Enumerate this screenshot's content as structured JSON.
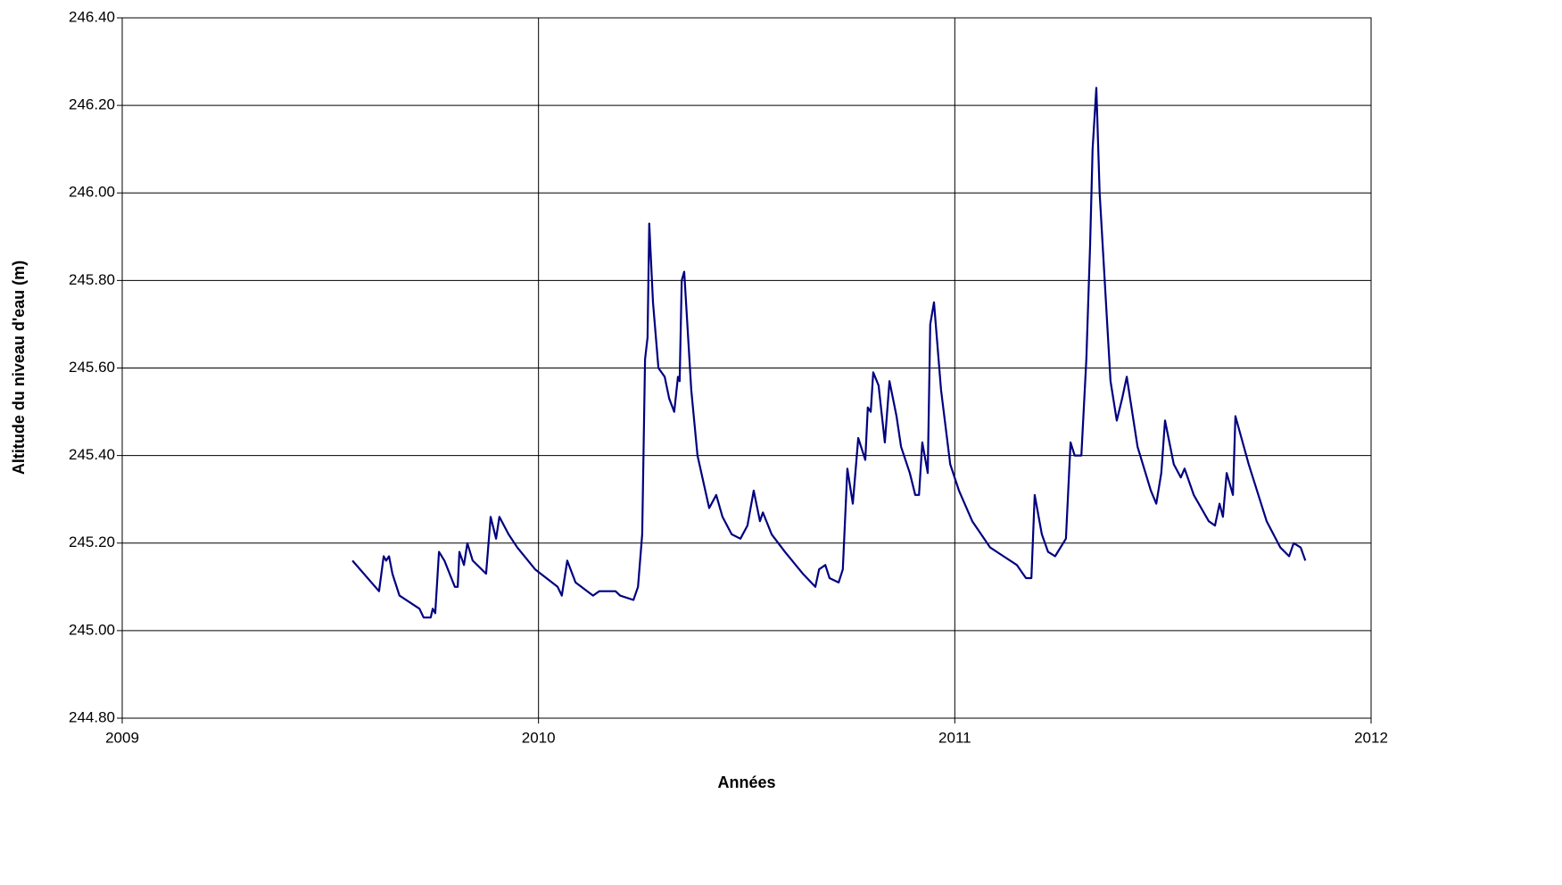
{
  "chart_data": {
    "type": "line",
    "x_label": "Années",
    "y_label": "Altitude du niveau d'eau (m)",
    "x": [
      2009.553,
      2009.617,
      2009.628,
      2009.634,
      2009.641,
      2009.649,
      2009.666,
      2009.714,
      2009.724,
      2009.741,
      2009.746,
      2009.752,
      2009.761,
      2009.774,
      2009.799,
      2009.806,
      2009.81,
      2009.821,
      2009.829,
      2009.842,
      2009.874,
      2009.885,
      2009.898,
      2009.906,
      2009.928,
      2009.949,
      2009.992,
      2010.046,
      2010.056,
      2010.069,
      2010.089,
      2010.131,
      2010.146,
      2010.185,
      2010.196,
      2010.228,
      2010.239,
      2010.249,
      2010.256,
      2010.262,
      2010.266,
      2010.275,
      2010.288,
      2010.303,
      2010.314,
      2010.326,
      2010.335,
      2010.339,
      2010.344,
      2010.35,
      2010.367,
      2010.382,
      2010.41,
      2010.427,
      2010.442,
      2010.464,
      2010.485,
      2010.502,
      2010.517,
      2010.532,
      2010.539,
      2010.56,
      2010.592,
      2010.635,
      2010.665,
      2010.674,
      2010.689,
      2010.699,
      2010.721,
      2010.731,
      2010.742,
      2010.755,
      2010.768,
      2010.785,
      2010.791,
      2010.798,
      2010.804,
      2010.817,
      2010.832,
      2010.843,
      2010.86,
      2010.871,
      2010.892,
      2010.905,
      2010.914,
      2010.922,
      2010.935,
      2010.941,
      2010.95,
      2010.967,
      2010.989,
      2011.01,
      2011.042,
      2011.085,
      2011.117,
      2011.149,
      2011.171,
      2011.184,
      2011.192,
      2011.209,
      2011.224,
      2011.241,
      2011.267,
      2011.278,
      2011.288,
      2011.304,
      2011.316,
      2011.325,
      2011.331,
      2011.34,
      2011.348,
      2011.374,
      2011.389,
      2011.402,
      2011.413,
      2011.439,
      2011.471,
      2011.484,
      2011.496,
      2011.505,
      2011.526,
      2011.543,
      2011.552,
      2011.574,
      2011.61,
      2011.625,
      2011.636,
      2011.644,
      2011.653,
      2011.668,
      2011.674,
      2011.706,
      2011.749,
      2011.782,
      2011.803,
      2011.814,
      2011.831,
      2011.842
    ],
    "series": [
      {
        "color": "#000080",
        "values": [
          245.16,
          245.09,
          245.17,
          245.16,
          245.17,
          245.13,
          245.08,
          245.05,
          245.03,
          245.03,
          245.05,
          245.04,
          245.18,
          245.16,
          245.1,
          245.1,
          245.18,
          245.15,
          245.2,
          245.16,
          245.13,
          245.26,
          245.21,
          245.26,
          245.22,
          245.19,
          245.14,
          245.1,
          245.08,
          245.16,
          245.11,
          245.08,
          245.09,
          245.09,
          245.08,
          245.07,
          245.1,
          245.22,
          245.62,
          245.67,
          245.93,
          245.75,
          245.6,
          245.58,
          245.53,
          245.5,
          245.58,
          245.57,
          245.8,
          245.82,
          245.55,
          245.4,
          245.28,
          245.31,
          245.26,
          245.22,
          245.21,
          245.24,
          245.32,
          245.25,
          245.27,
          245.22,
          245.18,
          245.13,
          245.1,
          245.14,
          245.15,
          245.12,
          245.11,
          245.14,
          245.37,
          245.29,
          245.44,
          245.39,
          245.51,
          245.5,
          245.59,
          245.56,
          245.43,
          245.57,
          245.49,
          245.42,
          245.36,
          245.31,
          245.31,
          245.43,
          245.36,
          245.7,
          245.75,
          245.55,
          245.38,
          245.32,
          245.25,
          245.19,
          245.17,
          245.15,
          245.12,
          245.12,
          245.31,
          245.22,
          245.18,
          245.17,
          245.21,
          245.43,
          245.4,
          245.4,
          245.62,
          245.88,
          246.1,
          246.24,
          246.0,
          245.57,
          245.48,
          245.53,
          245.58,
          245.42,
          245.32,
          245.29,
          245.36,
          245.48,
          245.38,
          245.35,
          245.37,
          245.31,
          245.25,
          245.24,
          245.29,
          245.26,
          245.36,
          245.31,
          245.49,
          245.38,
          245.25,
          245.19,
          245.17,
          245.2,
          245.19,
          245.16
        ]
      }
    ],
    "xlim": [
      2009,
      2012
    ],
    "xticks": [
      2009,
      2010,
      2011,
      2012
    ],
    "ylim": [
      244.8,
      246.4
    ],
    "yticks": [
      {
        "value": 244.8,
        "label": "244.80"
      },
      {
        "value": 245.0,
        "label": "245.00"
      },
      {
        "value": 245.2,
        "label": "245.20"
      },
      {
        "value": 245.4,
        "label": "245.40"
      },
      {
        "value": 245.6,
        "label": "245.60"
      },
      {
        "value": 245.8,
        "label": "245.80"
      },
      {
        "value": 246.0,
        "label": "246.00"
      },
      {
        "value": 246.2,
        "label": "246.20"
      },
      {
        "value": 246.4,
        "label": "246.40"
      }
    ],
    "grid": true
  }
}
